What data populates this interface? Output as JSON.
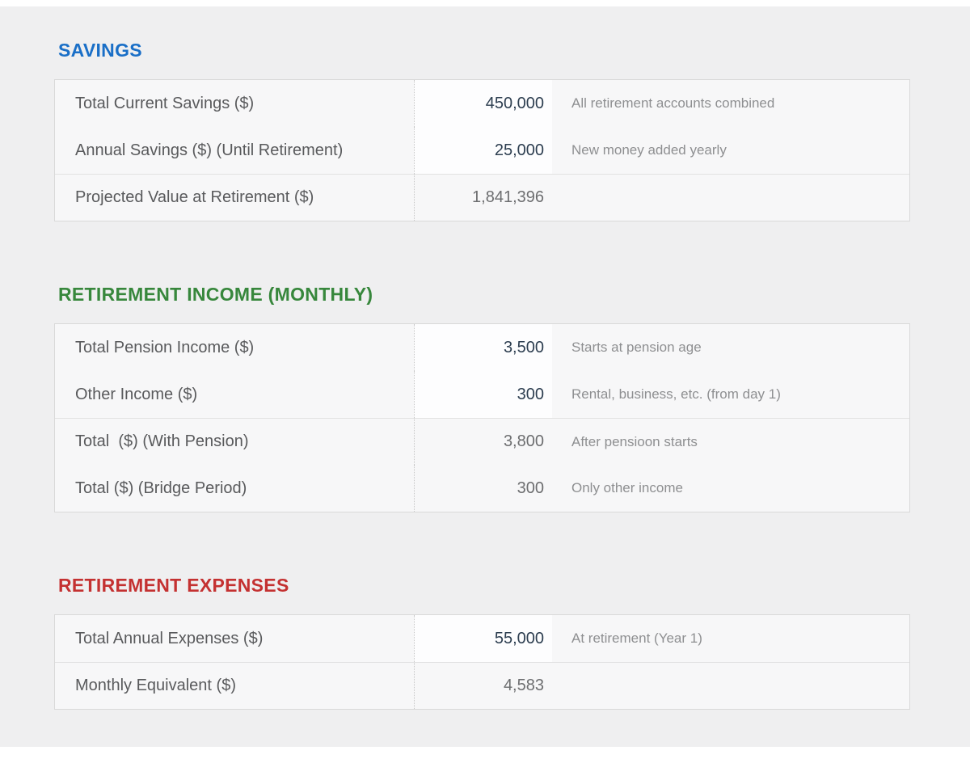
{
  "colors": {
    "page_background": "#efeff0",
    "card_background": "#f7f7f8",
    "input_cell_background": "#fdfdfe",
    "input_value_text": "#2d3e50",
    "computed_value_text": "#6d6e70",
    "label_text": "#595a5c",
    "note_text": "#8e8f91",
    "savings_title": "#1a6fc7",
    "income_title": "#37873c",
    "expenses_title": "#c43131"
  },
  "sections": [
    {
      "title": "SAVINGS",
      "title_color": "#1a6fc7",
      "rows": [
        {
          "label": "Total Current Savings ($)",
          "value": "450,000",
          "note": "All retirement accounts combined",
          "type": "input"
        },
        {
          "label": "Annual Savings ($) (Until Retirement)",
          "value": "25,000",
          "note": "New money added yearly",
          "type": "input"
        },
        {
          "label": "Projected Value at Retirement ($)",
          "value": "1,841,396",
          "note": "",
          "type": "computed"
        }
      ]
    },
    {
      "title": "RETIREMENT INCOME (MONTHLY)",
      "title_color": "#37873c",
      "rows": [
        {
          "label": "Total Pension Income ($)",
          "value": "3,500",
          "note": "Starts at pension age",
          "type": "input"
        },
        {
          "label": "Other Income ($)",
          "value": "300",
          "note": "Rental, business, etc. (from day 1)",
          "type": "input"
        },
        {
          "label": "Total  ($) (With Pension)",
          "value": "3,800",
          "note": "After pensioon starts",
          "type": "computed"
        },
        {
          "label": "Total ($) (Bridge Period)",
          "value": "300",
          "note": "Only other income",
          "type": "computed"
        }
      ]
    },
    {
      "title": "RETIREMENT EXPENSES",
      "title_color": "#c43131",
      "rows": [
        {
          "label": "Total Annual Expenses ($)",
          "value": "55,000",
          "note": "At retirement (Year 1)",
          "type": "input"
        },
        {
          "label": "Monthly Equivalent ($)",
          "value": "4,583",
          "note": "",
          "type": "computed"
        }
      ]
    }
  ]
}
